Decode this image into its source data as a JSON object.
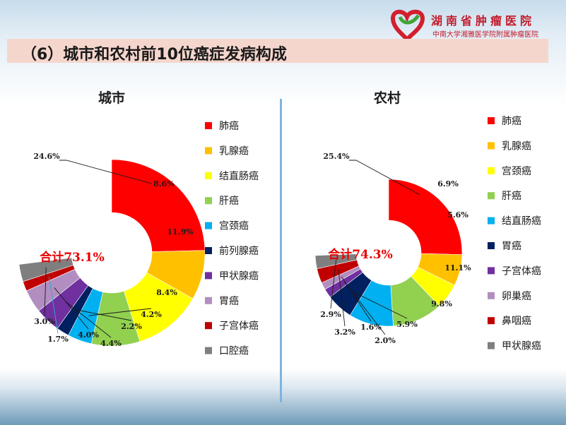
{
  "slide_title": "（6）城市和农村前10位癌症发病构成",
  "logo": {
    "name": "湖南省肿瘤医院",
    "subtitle": "中南大学湘雅医学院附属肿瘤医院",
    "icon": "heart-ribbon-logo"
  },
  "colors": {
    "red": "#ff0000",
    "orange": "#ffc000",
    "yellow": "#ffff00",
    "green": "#92d050",
    "cyan": "#00b0f0",
    "navy": "#002060",
    "purple": "#7030a0",
    "lilac": "#b28ec0",
    "darkred": "#c00000",
    "gray": "#7f7f7f",
    "total_text": "#e60000",
    "divider": "#7fb3df"
  },
  "chart_data": [
    {
      "type": "pie",
      "variant": "donut",
      "title": "城市",
      "total_label": "合计73.1%",
      "start_angle_deg": 270,
      "legend_position": "right",
      "categories": [
        "肺癌",
        "乳腺癌",
        "结直肠癌",
        "肝癌",
        "宫颈癌",
        "前列腺癌",
        "甲状腺癌",
        "胃癌",
        "子宫体癌",
        "口腔癌"
      ],
      "values": [
        24.6,
        8.6,
        11.9,
        8.4,
        4.2,
        2.2,
        4.4,
        4.0,
        1.7,
        3.0
      ],
      "labels": [
        "24.6%",
        "8.6%",
        "11.9%",
        "8.4%",
        "4.2%",
        "2.2%",
        "4.4%",
        "4.0%",
        "1.7%",
        "3.0%"
      ],
      "colors": [
        "#ff0000",
        "#ffc000",
        "#ffff00",
        "#92d050",
        "#00b0f0",
        "#002060",
        "#7030a0",
        "#b28ec0",
        "#c00000",
        "#7f7f7f"
      ]
    },
    {
      "type": "pie",
      "variant": "donut",
      "title": "农村",
      "total_label": "合计74.3%",
      "start_angle_deg": 270,
      "legend_position": "right",
      "categories": [
        "肺癌",
        "乳腺癌",
        "宫颈癌",
        "肝癌",
        "结直肠癌",
        "胃癌",
        "子宫体癌",
        "卵巢癌",
        "鼻咽癌",
        "甲状腺癌"
      ],
      "values": [
        25.4,
        6.9,
        5.6,
        11.1,
        9.8,
        5.9,
        2.0,
        1.6,
        3.2,
        2.9
      ],
      "labels": [
        "25.4%",
        "6.9%",
        "5.6%",
        "11.1%",
        "9.8%",
        "5.9%",
        "2.0%",
        "1.6%",
        "3.2%",
        "2.9%"
      ],
      "colors": [
        "#ff0000",
        "#ffc000",
        "#ffff00",
        "#92d050",
        "#00b0f0",
        "#002060",
        "#7030a0",
        "#b28ec0",
        "#c00000",
        "#7f7f7f"
      ]
    }
  ]
}
